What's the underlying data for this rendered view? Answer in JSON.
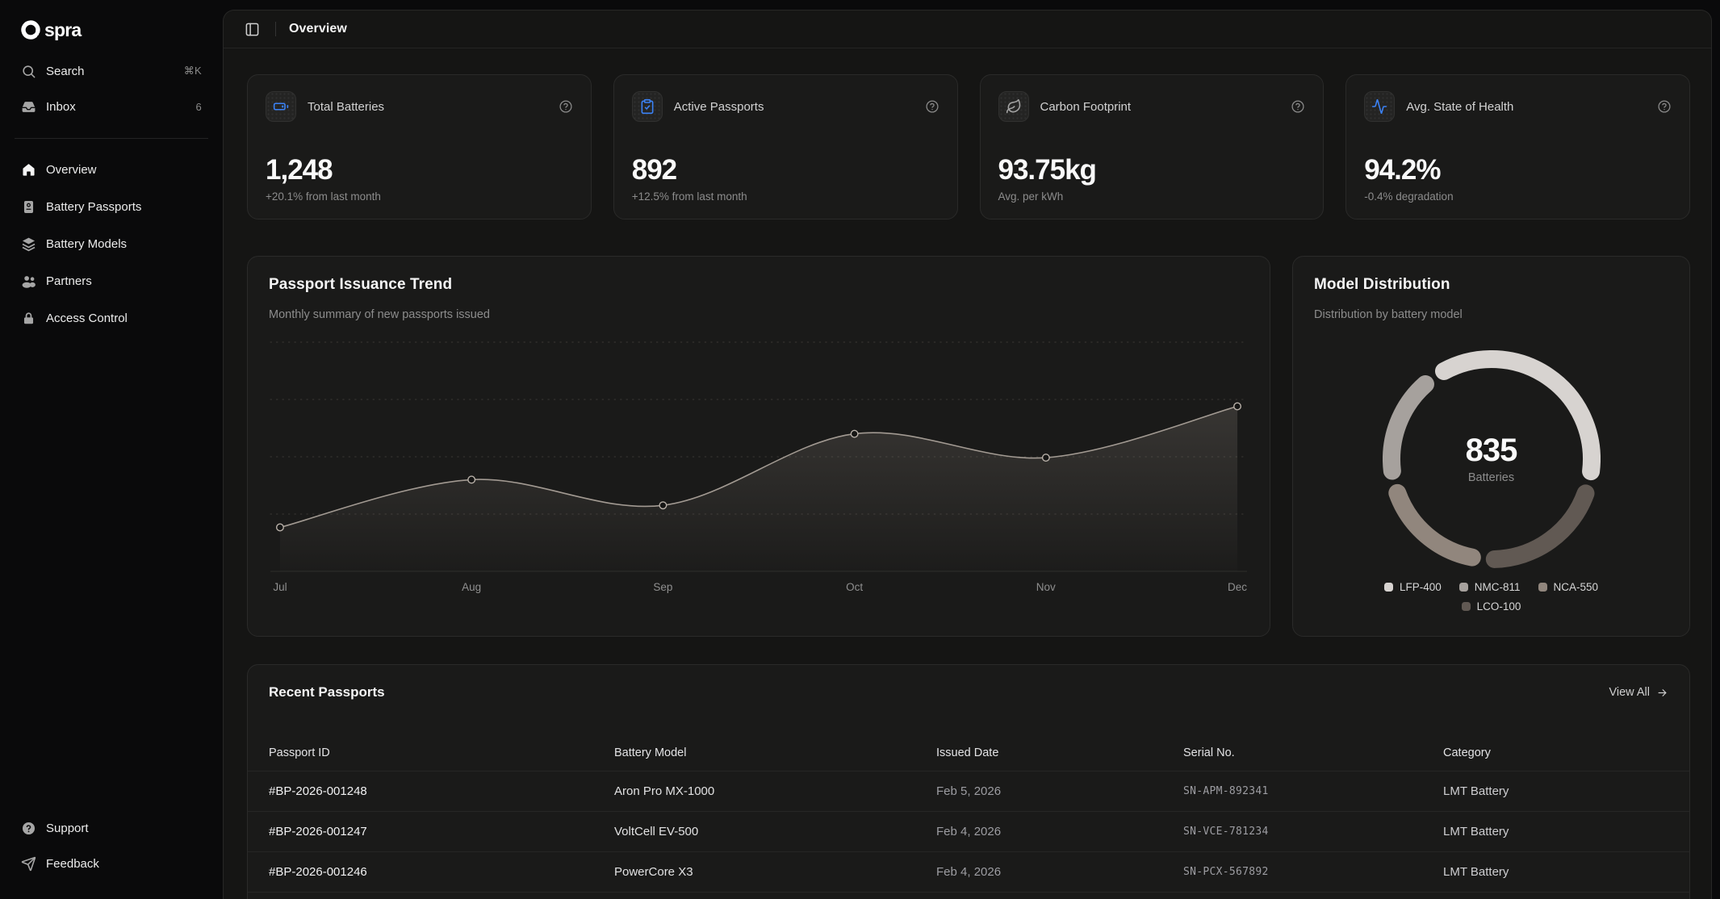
{
  "sidebar": {
    "logo_text": "spra",
    "search": {
      "label": "Search",
      "shortcut": "⌘K"
    },
    "inbox": {
      "label": "Inbox",
      "badge": "6"
    },
    "nav": [
      {
        "label": "Overview",
        "icon": "house",
        "active": true
      },
      {
        "label": "Battery Passports",
        "icon": "passport"
      },
      {
        "label": "Battery Models",
        "icon": "layers"
      },
      {
        "label": "Partners",
        "icon": "users"
      },
      {
        "label": "Access Control",
        "icon": "lock"
      }
    ],
    "footer": [
      {
        "label": "Support",
        "icon": "circle-help"
      },
      {
        "label": "Feedback",
        "icon": "send"
      }
    ]
  },
  "header": {
    "title": "Overview"
  },
  "stats": {
    "cards": [
      {
        "icon": "battery-icon",
        "label": "Total Batteries",
        "value": "1,248",
        "sub": "+20.1% from last month",
        "accent": "#3b82f6"
      },
      {
        "icon": "clipboard-check-icon",
        "label": "Active Passports",
        "value": "892",
        "sub": "+12.5% from last month",
        "accent": "#3b82f6"
      },
      {
        "icon": "leaf-icon",
        "label": "Carbon Footprint",
        "value": "93.75kg",
        "sub": "Avg. per kWh",
        "accent": "#a3a3a3"
      },
      {
        "icon": "activity-icon",
        "label": "Avg. State of Health",
        "value": "94.2%",
        "sub": "-0.4% degradation",
        "accent": "#3b82f6"
      }
    ]
  },
  "table": {
    "title": "Recent Passports",
    "view_all": "View All",
    "columns": [
      "Passport ID",
      "Battery Model",
      "Issued Date",
      "Serial No.",
      "Category"
    ],
    "rows": [
      {
        "id": "#BP-2026-001248",
        "model": "Aron Pro MX-1000",
        "date": "Feb 5, 2026",
        "serial": "SN-APM-892341",
        "category": "LMT Battery"
      },
      {
        "id": "#BP-2026-001247",
        "model": "VoltCell EV-500",
        "date": "Feb 4, 2026",
        "serial": "SN-VCE-781234",
        "category": "LMT Battery"
      },
      {
        "id": "#BP-2026-001246",
        "model": "PowerCore X3",
        "date": "Feb 4, 2026",
        "serial": "SN-PCX-567892",
        "category": "LMT Battery"
      }
    ]
  },
  "chart_data": [
    {
      "type": "area",
      "title": "Passport Issuance Trend",
      "subtitle": "Monthly summary of new passports issued",
      "x": [
        "Jul",
        "Aug",
        "Sep",
        "Oct",
        "Nov",
        "Dec"
      ],
      "series": [
        {
          "name": "Passports issued",
          "values": [
            48,
            100,
            72,
            150,
            124,
            180
          ]
        }
      ],
      "ylim": [
        0,
        250
      ],
      "grid": "horizontal-dotted",
      "legend_position": "none",
      "line_color": "#a29a92",
      "area_fill": "#8c847c"
    },
    {
      "type": "donut",
      "title": "Model Distribution",
      "subtitle": "Distribution by battery model",
      "center_value": "835",
      "center_label": "Batteries",
      "segments": [
        {
          "label": "LFP-400",
          "value": 340,
          "color": "#d7d3d0"
        },
        {
          "label": "NMC-811",
          "value": 150,
          "color": "#a6a19d"
        },
        {
          "label": "NCA-550",
          "value": 160,
          "color": "#91867d"
        },
        {
          "label": "LCO-100",
          "value": 185,
          "color": "#615953"
        }
      ],
      "legend_position": "bottom"
    }
  ]
}
